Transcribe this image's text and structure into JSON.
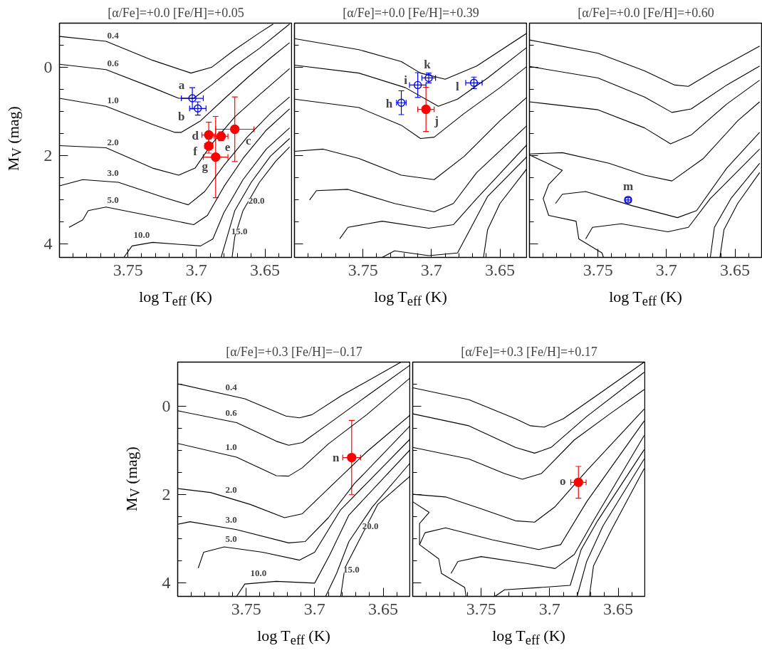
{
  "chart_data": [
    {
      "type": "line",
      "title": "[α/Fe]=+0.0 [Fe/H]=+0.05",
      "xlabel": "log T$_{eff}$ (K)",
      "ylabel": "M$_{V}$ (mag)",
      "xlim": [
        3.8,
        3.63
      ],
      "ylim": [
        4.3,
        -1
      ],
      "xticks": [
        3.75,
        3.7,
        3.65
      ],
      "yticks": [
        0,
        2,
        4
      ],
      "series": [
        {
          "name": "0.4",
          "color": "#000000",
          "x": [
            3.8,
            3.766,
            3.732,
            3.704,
            3.689,
            3.672,
            3.654,
            3.644
          ],
          "values": [
            -0.7,
            -0.59,
            -0.16,
            0.13,
            0.0,
            -0.4,
            -0.78,
            -0.98
          ]
        },
        {
          "name": "0.6",
          "color": "#000000",
          "x": [
            3.8,
            3.766,
            3.732,
            3.713,
            3.702,
            3.689,
            3.672,
            3.654,
            3.632
          ],
          "values": [
            -0.07,
            0.05,
            0.46,
            0.7,
            0.7,
            0.4,
            -0.03,
            -0.43,
            -0.98
          ]
        },
        {
          "name": "1.0",
          "color": "#000000",
          "x": [
            3.8,
            3.766,
            3.732,
            3.716,
            3.711,
            3.697,
            3.68,
            3.663,
            3.646,
            3.632
          ],
          "values": [
            0.7,
            0.88,
            1.29,
            1.47,
            1.47,
            1.21,
            0.72,
            0.24,
            -0.21,
            -0.56
          ]
        },
        {
          "name": "2.0",
          "color": "#000000",
          "x": [
            3.8,
            3.766,
            3.732,
            3.713,
            3.701,
            3.689,
            3.672,
            3.654,
            3.632
          ],
          "values": [
            1.77,
            1.82,
            2.28,
            2.44,
            2.28,
            1.74,
            1.12,
            0.62,
            0.03
          ]
        },
        {
          "name": "3.0",
          "color": "#000000",
          "x": [
            3.8,
            3.783,
            3.757,
            3.723,
            3.706,
            3.694,
            3.68,
            3.663,
            3.646,
            3.632
          ],
          "values": [
            2.68,
            2.54,
            2.6,
            2.95,
            3.11,
            2.81,
            2.22,
            1.58,
            1.04,
            0.67
          ]
        },
        {
          "name": "5.0",
          "color": "#000000",
          "x": [
            3.793,
            3.783,
            3.779,
            3.766,
            3.732,
            3.702,
            3.692,
            3.68,
            3.666,
            3.649,
            3.632
          ],
          "values": [
            3.62,
            3.45,
            3.24,
            3.16,
            3.37,
            3.56,
            3.35,
            2.7,
            2.06,
            1.42,
            0.94
          ]
        },
        {
          "name": "10.0",
          "color": "#000000",
          "x": [
            3.753,
            3.747,
            3.732,
            3.697,
            3.688,
            3.68,
            3.666,
            3.649,
            3.632
          ],
          "values": [
            4.3,
            4.04,
            3.96,
            4.04,
            3.88,
            3.29,
            2.54,
            1.85,
            1.37
          ]
        },
        {
          "name": "15.0",
          "color": "#000000",
          "x": [
            3.682,
            3.678,
            3.672,
            3.66,
            3.646,
            3.632
          ],
          "values": [
            4.3,
            3.88,
            3.24,
            2.6,
            2.01,
            1.61
          ]
        },
        {
          "name": "20.0",
          "color": "#000000",
          "x": [
            3.674,
            3.672,
            3.666,
            3.654,
            3.642,
            3.632
          ],
          "values": [
            4.3,
            3.83,
            3.24,
            2.6,
            2.12,
            1.8
          ]
        },
        {
          "name": "a",
          "type": "scatter",
          "marker": "circle",
          "color": "#0000ff",
          "x": [
            3.703
          ],
          "values": [
            0.7
          ],
          "xerrors": [
            0.008
          ],
          "errors": [
            0.24
          ]
        },
        {
          "name": "b",
          "type": "scatter",
          "marker": "circle",
          "color": "#0000ff",
          "x": [
            3.699
          ],
          "values": [
            0.93
          ],
          "xerrors": [
            0.006
          ],
          "errors": [
            0.15
          ]
        },
        {
          "name": "c",
          "type": "scatter",
          "marker": "circle",
          "color": "#ff0000",
          "x": [
            3.672
          ],
          "values": [
            1.4
          ],
          "xerrors": [
            0.014
          ],
          "errors": [
            0.73
          ]
        },
        {
          "name": "d",
          "type": "scatter",
          "marker": "circle",
          "color": "#ff0000",
          "x": [
            3.691
          ],
          "values": [
            1.53
          ],
          "xerrors": [
            0.005
          ],
          "errors": [
            0.29
          ]
        },
        {
          "name": "e",
          "type": "scatter",
          "marker": "circle",
          "color": "#ff0000",
          "x": [
            3.682
          ],
          "values": [
            1.56
          ],
          "xerrors": [
            0.005
          ],
          "errors": [
            0.1
          ]
        },
        {
          "name": "f",
          "type": "scatter",
          "marker": "circle",
          "color": "#ff0000",
          "x": [
            3.691
          ],
          "values": [
            1.78
          ],
          "xerrors": [
            0.003
          ],
          "errors": [
            0.16
          ]
        },
        {
          "name": "g",
          "type": "scatter",
          "marker": "circle",
          "color": "#ff0000",
          "x": [
            3.686
          ],
          "values": [
            2.03
          ],
          "xerrors": [
            0.009
          ],
          "errors": [
            0.92
          ]
        }
      ]
    },
    {
      "type": "line",
      "title": "[α/Fe]=+0.0 [Fe/H]=+0.39",
      "xlabel": "log T$_{eff}$ (K)",
      "xlim": [
        3.8,
        3.63
      ],
      "ylim": [
        4.3,
        -1
      ],
      "xticks": [
        3.75,
        3.7,
        3.65
      ],
      "yticks": [
        0,
        2,
        4
      ],
      "tick_labels": "x",
      "series": [
        {
          "color": "#000000",
          "x": [
            3.8,
            3.753,
            3.722,
            3.708,
            3.69,
            3.667,
            3.63
          ],
          "values": [
            -0.65,
            -0.4,
            -0.13,
            0.13,
            0.27,
            -0.03,
            -0.78
          ]
        },
        {
          "color": "#000000",
          "x": [
            3.8,
            3.753,
            3.719,
            3.695,
            3.681,
            3.659,
            3.63
          ],
          "values": [
            -0.05,
            0.13,
            0.46,
            0.88,
            0.72,
            0.24,
            -0.46
          ]
        },
        {
          "color": "#000000",
          "x": [
            3.8,
            3.753,
            3.722,
            3.708,
            3.698,
            3.676,
            3.65,
            3.63
          ],
          "values": [
            0.72,
            0.91,
            1.31,
            1.61,
            1.58,
            1.04,
            0.46,
            -0.03
          ]
        },
        {
          "color": "#000000",
          "x": [
            3.8,
            3.779,
            3.753,
            3.722,
            3.698,
            3.676,
            3.65,
            3.63
          ],
          "values": [
            1.9,
            1.85,
            2.06,
            2.44,
            2.54,
            2.01,
            1.21,
            0.67
          ]
        },
        {
          "color": "#000000",
          "x": [
            3.789,
            3.784,
            3.761,
            3.727,
            3.698,
            3.684,
            3.667,
            3.63
          ],
          "values": [
            3.0,
            2.79,
            2.76,
            3.08,
            3.27,
            3.08,
            2.38,
            1.31
          ]
        },
        {
          "color": "#000000",
          "x": [
            3.767,
            3.761,
            3.736,
            3.702,
            3.684,
            3.667,
            3.63
          ],
          "values": [
            3.88,
            3.62,
            3.48,
            3.64,
            3.56,
            2.97,
            1.74
          ]
        },
        {
          "color": "#000000",
          "x": [
            3.736,
            3.727,
            3.702,
            3.681,
            3.671,
            3.659,
            3.63
          ],
          "values": [
            4.3,
            4.15,
            4.26,
            4.2,
            3.62,
            2.92,
            2.01
          ]
        },
        {
          "color": "#000000",
          "x": [
            3.662,
            3.659,
            3.65,
            3.63
          ],
          "values": [
            4.3,
            3.67,
            3.08,
            2.28
          ]
        },
        {
          "name": "h",
          "type": "scatter",
          "marker": "circle",
          "color": "#0000ff",
          "x": [
            3.722
          ],
          "values": [
            0.8
          ],
          "xerrors": [
            0.0035
          ],
          "errors": [
            0.27
          ]
        },
        {
          "name": "i",
          "type": "scatter",
          "marker": "circle",
          "color": "#0000ff",
          "x": [
            3.71
          ],
          "values": [
            0.4
          ],
          "xerrors": [
            0.006
          ],
          "errors": [
            0.28
          ]
        },
        {
          "name": "k",
          "type": "scatter",
          "marker": "circle",
          "color": "#0000ff",
          "x": [
            3.702
          ],
          "values": [
            0.24
          ],
          "xerrors": [
            0.005
          ],
          "errors": [
            0.11
          ]
        },
        {
          "name": "l",
          "type": "scatter",
          "marker": "circle",
          "color": "#0000ff",
          "x": [
            3.669
          ],
          "values": [
            0.35
          ],
          "xerrors": [
            0.006
          ],
          "errors": [
            0.13
          ]
        },
        {
          "name": "j",
          "type": "scatter",
          "marker": "circle",
          "color": "#ff0000",
          "x": [
            3.704
          ],
          "values": [
            0.95
          ],
          "xerrors": [
            0.006
          ],
          "errors": [
            0.5
          ]
        }
      ]
    },
    {
      "type": "line",
      "title": "[α/Fe]=+0.0 [Fe/H]=+0.60",
      "xlabel": "log T$_{eff}$ (K)",
      "xlim": [
        3.8,
        3.63
      ],
      "ylim": [
        4.3,
        -1
      ],
      "xticks": [
        3.75,
        3.7,
        3.65
      ],
      "yticks": [
        0,
        2,
        4
      ],
      "tick_labels": "x",
      "series": [
        {
          "color": "#000000",
          "x": [
            3.8,
            3.75,
            3.716,
            3.694,
            3.684,
            3.665,
            3.632
          ],
          "values": [
            -0.62,
            -0.32,
            0.08,
            0.4,
            0.43,
            0.08,
            -0.48
          ]
        },
        {
          "color": "#000000",
          "x": [
            3.8,
            3.75,
            3.716,
            3.696,
            3.682,
            3.656,
            3.632
          ],
          "values": [
            -0.02,
            0.24,
            0.67,
            1.02,
            0.94,
            0.4,
            -0.03
          ]
        },
        {
          "color": "#000000",
          "x": [
            3.8,
            3.75,
            3.716,
            3.697,
            3.682,
            3.656,
            3.632
          ],
          "values": [
            0.78,
            0.96,
            1.37,
            1.73,
            1.53,
            0.83,
            0.29
          ]
        },
        {
          "color": "#000000",
          "x": [
            3.8,
            3.776,
            3.742,
            3.716,
            3.696,
            3.673,
            3.648,
            3.632
          ],
          "values": [
            1.96,
            1.93,
            2.17,
            2.44,
            2.57,
            2.06,
            1.21,
            0.78
          ]
        },
        {
          "color": "#000000",
          "x": [
            3.781,
            3.776,
            3.759,
            3.725,
            3.692,
            3.678,
            3.656,
            3.632
          ],
          "values": [
            3.08,
            2.87,
            2.81,
            3.13,
            3.4,
            3.24,
            2.28,
            1.47
          ]
        },
        {
          "color": "#000000",
          "x": [
            3.759,
            3.754,
            3.733,
            3.699,
            3.684,
            3.668,
            3.632
          ],
          "values": [
            3.88,
            3.62,
            3.54,
            3.72,
            3.62,
            2.97,
            1.85
          ]
        },
        {
          "color": "#000000",
          "x": [
            3.668,
            3.665,
            3.653,
            3.632
          ],
          "values": [
            4.3,
            3.62,
            2.97,
            2.17
          ]
        },
        {
          "color": "#000000",
          "x": [
            3.661,
            3.658,
            3.648,
            3.632
          ],
          "values": [
            4.3,
            3.67,
            3.08,
            2.38
          ]
        },
        {
          "color": "#000000",
          "x": [
            3.8,
            3.776,
            3.786,
            3.79,
            3.786,
            3.766,
            3.764,
            3.747,
            3.746
          ],
          "values": [
            1.98,
            2.33,
            2.65,
            2.97,
            3.35,
            3.48,
            3.88,
            4.2,
            4.3
          ]
        },
        {
          "name": "m",
          "type": "scatter",
          "marker": "circle",
          "color": "#0000ff",
          "x": [
            3.728
          ],
          "values": [
            3.0
          ],
          "xerrors": [
            0.002
          ],
          "errors": [
            0.05
          ]
        }
      ]
    },
    {
      "type": "line",
      "title": "[α/Fe]=+0.3 [Fe/H]=−0.17",
      "xlabel": "log T$_{eff}$ (K)",
      "ylabel": "M$_{V}$ (mag)",
      "xlim": [
        3.8,
        3.63
      ],
      "ylim": [
        4.3,
        -1
      ],
      "xticks": [
        3.75,
        3.7,
        3.65
      ],
      "yticks": [
        0,
        2,
        4
      ],
      "series": [
        {
          "name": "0.4",
          "color": "#000000",
          "x": [
            3.8,
            3.751,
            3.721,
            3.711,
            3.702,
            3.681,
            3.637
          ],
          "values": [
            -0.51,
            -0.17,
            0.22,
            0.26,
            0.19,
            -0.23,
            -1.0
          ]
        },
        {
          "name": "0.6",
          "color": "#000000",
          "x": [
            3.8,
            3.757,
            3.728,
            3.719,
            3.709,
            3.69,
            3.662,
            3.63
          ],
          "values": [
            0.1,
            0.37,
            0.79,
            0.88,
            0.82,
            0.4,
            -0.23,
            -0.94
          ]
        },
        {
          "name": "1.0",
          "color": "#000000",
          "x": [
            3.8,
            3.757,
            3.728,
            3.719,
            3.709,
            3.69,
            3.662,
            3.63
          ],
          "values": [
            0.84,
            1.15,
            1.57,
            1.58,
            1.39,
            0.85,
            0.19,
            -0.65
          ]
        },
        {
          "name": "2.0",
          "color": "#000000",
          "x": [
            3.8,
            3.776,
            3.747,
            3.722,
            3.709,
            3.69,
            3.662,
            3.63
          ],
          "values": [
            1.86,
            1.95,
            2.22,
            2.52,
            2.43,
            1.86,
            1.03,
            0.19
          ]
        },
        {
          "name": "3.0",
          "color": "#000000",
          "x": [
            3.8,
            3.791,
            3.757,
            3.719,
            3.707,
            3.69,
            3.671,
            3.63
          ],
          "values": [
            2.67,
            2.61,
            2.79,
            3.09,
            3.06,
            2.52,
            1.75,
            0.43
          ]
        },
        {
          "name": "5.0",
          "color": "#000000",
          "x": [
            3.785,
            3.781,
            3.766,
            3.738,
            3.711,
            3.7,
            3.681,
            3.63
          ],
          "values": [
            3.66,
            3.3,
            3.18,
            3.3,
            3.48,
            3.3,
            2.34,
            0.73
          ]
        },
        {
          "name": "10.0",
          "color": "#000000",
          "x": [
            3.757,
            3.751,
            3.728,
            3.7,
            3.689,
            3.675,
            3.63
          ],
          "values": [
            4.3,
            4.02,
            3.96,
            4.0,
            3.36,
            2.46,
            0.97
          ]
        },
        {
          "name": "15.0",
          "color": "#000000",
          "x": [
            3.692,
            3.684,
            3.675,
            3.658,
            3.63
          ],
          "values": [
            4.3,
            3.78,
            3.06,
            2.28,
            1.27
          ]
        },
        {
          "name": "20.0",
          "color": "#000000",
          "x": [
            3.681,
            3.678,
            3.667,
            3.654,
            3.63
          ],
          "values": [
            4.3,
            3.66,
            3.0,
            2.22,
            1.57
          ]
        },
        {
          "name": "n",
          "type": "scatter",
          "marker": "circle",
          "color": "#ff0000",
          "x": [
            3.673
          ],
          "values": [
            1.16
          ],
          "xerrors": [
            0.0065
          ],
          "errors": [
            0.84
          ]
        }
      ]
    },
    {
      "type": "line",
      "title": "[α/Fe]=+0.3 [Fe/H]=+0.17",
      "xlabel": "log T$_{eff}$ (K)",
      "xlim": [
        3.8,
        3.63
      ],
      "ylim": [
        4.3,
        -1
      ],
      "xticks": [
        3.75,
        3.7,
        3.65
      ],
      "yticks": [
        0,
        2,
        4
      ],
      "tick_labels": "x",
      "series": [
        {
          "color": "#000000",
          "x": [
            3.8,
            3.759,
            3.725,
            3.714,
            3.704,
            3.69,
            3.665,
            3.631
          ],
          "values": [
            -0.42,
            -0.15,
            0.28,
            0.44,
            0.47,
            0.28,
            -0.26,
            -1.0
          ]
        },
        {
          "color": "#000000",
          "x": [
            3.8,
            3.759,
            3.725,
            3.711,
            3.699,
            3.673,
            3.631
          ],
          "values": [
            0.17,
            0.44,
            0.93,
            1.06,
            0.93,
            0.23,
            -0.77
          ]
        },
        {
          "color": "#000000",
          "x": [
            3.8,
            3.759,
            3.733,
            3.72,
            3.706,
            3.682,
            3.656,
            3.631
          ],
          "values": [
            0.93,
            1.19,
            1.52,
            1.65,
            1.52,
            0.76,
            0.17,
            -0.38
          ]
        },
        {
          "color": "#000000",
          "x": [
            3.8,
            3.776,
            3.75,
            3.725,
            3.711,
            3.696,
            3.673,
            3.631
          ],
          "values": [
            1.99,
            2.05,
            2.32,
            2.59,
            2.62,
            2.27,
            1.46,
            0.06
          ]
        },
        {
          "color": "#000000",
          "x": [
            3.795,
            3.791,
            3.776,
            3.742,
            3.708,
            3.692,
            3.673,
            3.631
          ],
          "values": [
            3.13,
            2.86,
            2.75,
            3.02,
            3.24,
            3.13,
            2.16,
            0.33
          ]
        },
        {
          "color": "#000000",
          "x": [
            3.772,
            3.767,
            3.75,
            3.716,
            3.696,
            3.682,
            3.668,
            3.631
          ],
          "values": [
            3.78,
            3.51,
            3.4,
            3.56,
            3.67,
            3.35,
            2.59,
            0.66
          ]
        },
        {
          "color": "#000000",
          "x": [
            3.74,
            3.733,
            3.708,
            3.685,
            3.677,
            3.665,
            3.631
          ],
          "values": [
            4.3,
            4.15,
            4.1,
            4.05,
            3.24,
            2.59,
            0.98
          ]
        },
        {
          "color": "#000000",
          "x": [
            3.68,
            3.673,
            3.661,
            3.631
          ],
          "values": [
            4.3,
            3.51,
            2.7,
            1.19
          ]
        },
        {
          "color": "#000000",
          "x": [
            3.671,
            3.668,
            3.656,
            3.631
          ],
          "values": [
            4.3,
            3.61,
            2.86,
            1.41
          ]
        },
        {
          "color": "#000000",
          "x": [
            3.8,
            3.788,
            3.795,
            3.795,
            3.781,
            3.779,
            3.762,
            3.761
          ],
          "values": [
            2.16,
            2.4,
            2.65,
            3.13,
            3.45,
            3.78,
            4.1,
            4.3
          ]
        },
        {
          "name": "o",
          "type": "scatter",
          "marker": "circle",
          "color": "#ff0000",
          "x": [
            3.679
          ],
          "values": [
            1.72
          ],
          "xerrors": [
            0.0056
          ],
          "errors": [
            0.36
          ]
        }
      ]
    }
  ]
}
